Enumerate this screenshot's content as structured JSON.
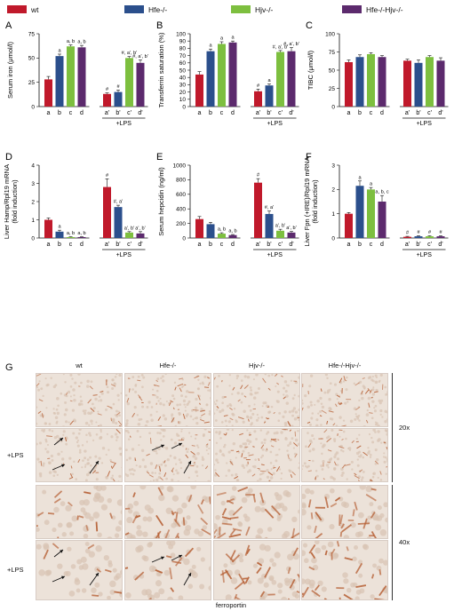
{
  "colors": {
    "wt": "#c0192b",
    "hfe": "#2b4f8c",
    "hjv": "#7dbf3f",
    "dko": "#5c2a6d",
    "tissue_base": "#ece2d9",
    "tissue_dark": "#d9c3b2",
    "stain": "#b55c30"
  },
  "legend": [
    {
      "label": "wt",
      "color_key": "wt"
    },
    {
      "label": "Hfe-/-",
      "color_key": "hfe"
    },
    {
      "label": "Hjv-/-",
      "color_key": "hjv"
    },
    {
      "label": "Hfe-/-Hjv-/-",
      "color_key": "dko"
    }
  ],
  "chart_data": [
    {
      "panel": "A",
      "type": "bar",
      "categories": [
        "a",
        "b",
        "c",
        "d",
        "a'",
        "b'",
        "c'",
        "d'"
      ],
      "values": [
        28,
        52,
        62,
        61,
        13,
        15,
        50,
        45
      ],
      "errors": [
        3,
        2,
        1.5,
        2,
        1,
        2,
        1.5,
        3
      ],
      "annotations": [
        "",
        "a",
        "a, b",
        "a, b",
        "#",
        "#",
        "#, a', b'",
        "#, a', b'"
      ],
      "ylabel": "Serum iron (μmol/l)",
      "ylim": [
        0,
        75
      ],
      "yticks": [
        0,
        25,
        50,
        75
      ],
      "group_label": "+LPS"
    },
    {
      "panel": "B",
      "type": "bar",
      "categories": [
        "a",
        "b",
        "c",
        "d",
        "a'",
        "b'",
        "c'",
        "d'"
      ],
      "values": [
        44,
        76,
        86,
        88,
        21,
        29,
        75,
        76
      ],
      "errors": [
        4,
        3,
        3,
        2,
        3,
        2,
        2,
        5
      ],
      "annotations": [
        "",
        "a",
        "a",
        "a",
        "#",
        "a",
        "#, a', b'",
        "#, a', b'"
      ],
      "ylabel": "Transferrin saturation (%)",
      "ylim": [
        0,
        100
      ],
      "yticks": [
        0,
        10,
        20,
        30,
        40,
        50,
        60,
        70,
        80,
        90,
        100
      ],
      "group_label": "+LPS"
    },
    {
      "panel": "C",
      "type": "bar",
      "categories": [
        "a",
        "b",
        "c",
        "d",
        "a'",
        "b'",
        "c'",
        "d'"
      ],
      "values": [
        61,
        68,
        72,
        68,
        63,
        60,
        68,
        63
      ],
      "errors": [
        3,
        3,
        2,
        2,
        2,
        4,
        2,
        4
      ],
      "annotations": [
        "",
        "",
        "",
        "",
        "",
        "",
        "",
        ""
      ],
      "ylabel": "TIBC (μmol/l)",
      "ylim": [
        0,
        100
      ],
      "yticks": [
        0,
        25,
        50,
        75,
        100
      ],
      "group_label": "+LPS"
    },
    {
      "panel": "D",
      "type": "bar",
      "categories": [
        "a",
        "b",
        "c",
        "d",
        "a'",
        "b'",
        "c'",
        "d'"
      ],
      "values": [
        1.0,
        0.35,
        0.05,
        0.05,
        2.8,
        1.7,
        0.3,
        0.25
      ],
      "errors": [
        0.1,
        0.08,
        0.02,
        0.02,
        0.45,
        0.1,
        0.05,
        0.1
      ],
      "annotations": [
        "",
        "a",
        "a, b",
        "a, b",
        "#",
        "#, a'",
        "a', b'",
        "a', b'"
      ],
      "ylabel": "Liver Hamp/Rpl19 mRNA (fold induction)",
      "ylim": [
        0,
        4
      ],
      "yticks": [
        0,
        1,
        2,
        3,
        4
      ],
      "group_label": "+LPS"
    },
    {
      "panel": "E",
      "type": "bar",
      "categories": [
        "a",
        "b",
        "c",
        "d",
        "a'",
        "b'",
        "c'",
        "d'"
      ],
      "values": [
        260,
        190,
        60,
        40,
        760,
        330,
        100,
        75
      ],
      "errors": [
        35,
        25,
        12,
        8,
        55,
        40,
        20,
        15
      ],
      "annotations": [
        "",
        "",
        "a, b",
        "a, b",
        "#",
        "#, a'",
        "a', b'",
        "a', b'"
      ],
      "ylabel": "Serum hepcidin (ng/ml)",
      "ylim": [
        0,
        1000
      ],
      "yticks": [
        0,
        200,
        400,
        600,
        800,
        1000
      ],
      "group_label": "+LPS"
    },
    {
      "panel": "F",
      "type": "bar",
      "categories": [
        "a",
        "b",
        "c",
        "d",
        "a'",
        "b'",
        "c'",
        "d'"
      ],
      "values": [
        1.0,
        2.15,
        2.0,
        1.5,
        0.05,
        0.07,
        0.07,
        0.07
      ],
      "errors": [
        0.05,
        0.2,
        0.08,
        0.25,
        0.02,
        0.02,
        0.02,
        0.02
      ],
      "annotations": [
        "",
        "a",
        "a",
        "a, b, c",
        "#",
        "#",
        "#",
        "#"
      ],
      "ylabel": "Liver Fpn (+IRE)/Rpl19 mRNA (fold induction)",
      "ylim": [
        0,
        3
      ],
      "yticks": [
        0,
        1,
        2,
        3
      ],
      "group_label": "+LPS"
    }
  ],
  "histology": {
    "panel": "G",
    "columns": [
      "wt",
      "Hfe-/-",
      "Hjv-/-",
      "Hfe-/-Hjv-/-"
    ],
    "row_labels": [
      "",
      "+LPS",
      "",
      "+LPS"
    ],
    "magnifications": [
      "20x",
      "40x"
    ],
    "caption": "ferroportin",
    "stain_density": [
      [
        0.3,
        0.5,
        0.4,
        0.45
      ],
      [
        0.25,
        0.35,
        0.5,
        0.45
      ],
      [
        0.3,
        0.55,
        0.6,
        0.55
      ],
      [
        0.15,
        0.25,
        0.6,
        0.5
      ]
    ]
  }
}
